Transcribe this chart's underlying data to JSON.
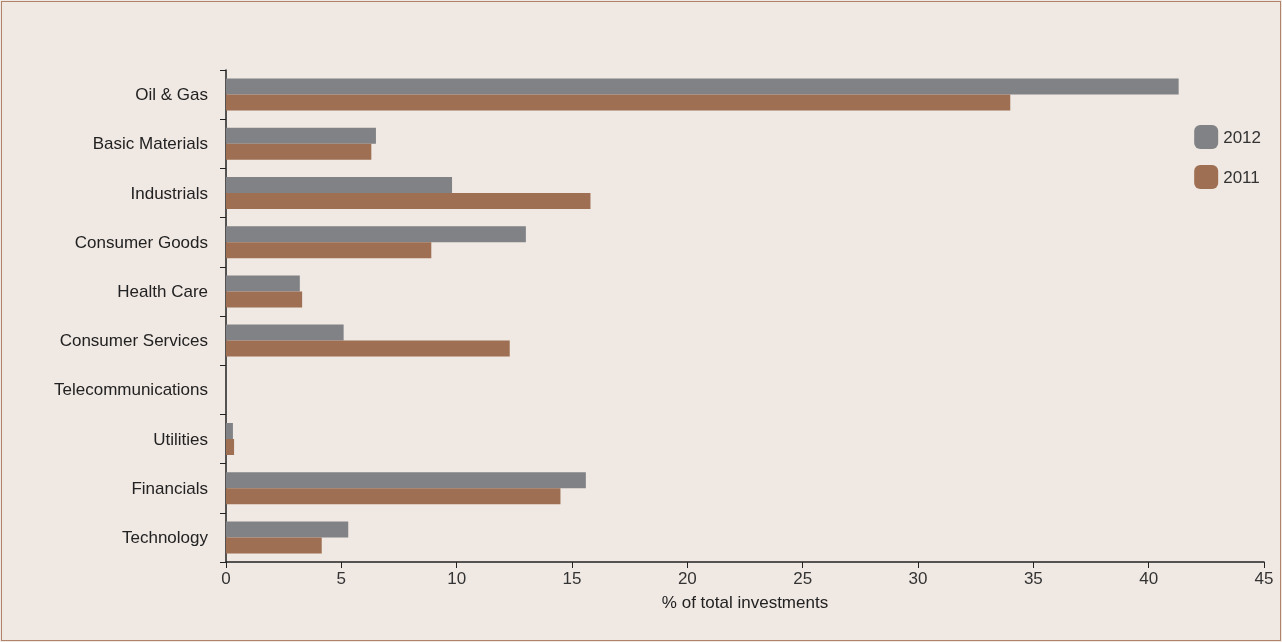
{
  "chart_data": {
    "type": "bar",
    "orientation": "horizontal",
    "xlabel": "% of total investments",
    "categories": [
      "Oil & Gas",
      "Basic Materials",
      "Industrials",
      "Consumer Goods",
      "Health Care",
      "Consumer Services",
      "Telecommunications",
      "Utilities",
      "Financials",
      "Technology"
    ],
    "series": [
      {
        "name": "2012",
        "color": "#808285",
        "values": [
          41.3,
          6.5,
          9.8,
          13.0,
          3.2,
          5.1,
          0,
          0.3,
          15.6,
          5.3
        ]
      },
      {
        "name": "2011",
        "color": "#9e6f52",
        "values": [
          34.0,
          6.3,
          15.8,
          8.9,
          3.3,
          12.3,
          0,
          0.35,
          14.5,
          4.15
        ]
      }
    ],
    "xlim": [
      0,
      45
    ],
    "xticks": [
      0,
      5,
      10,
      15,
      20,
      25,
      30,
      35,
      40,
      45
    ],
    "grid": false,
    "legend": "top right"
  }
}
